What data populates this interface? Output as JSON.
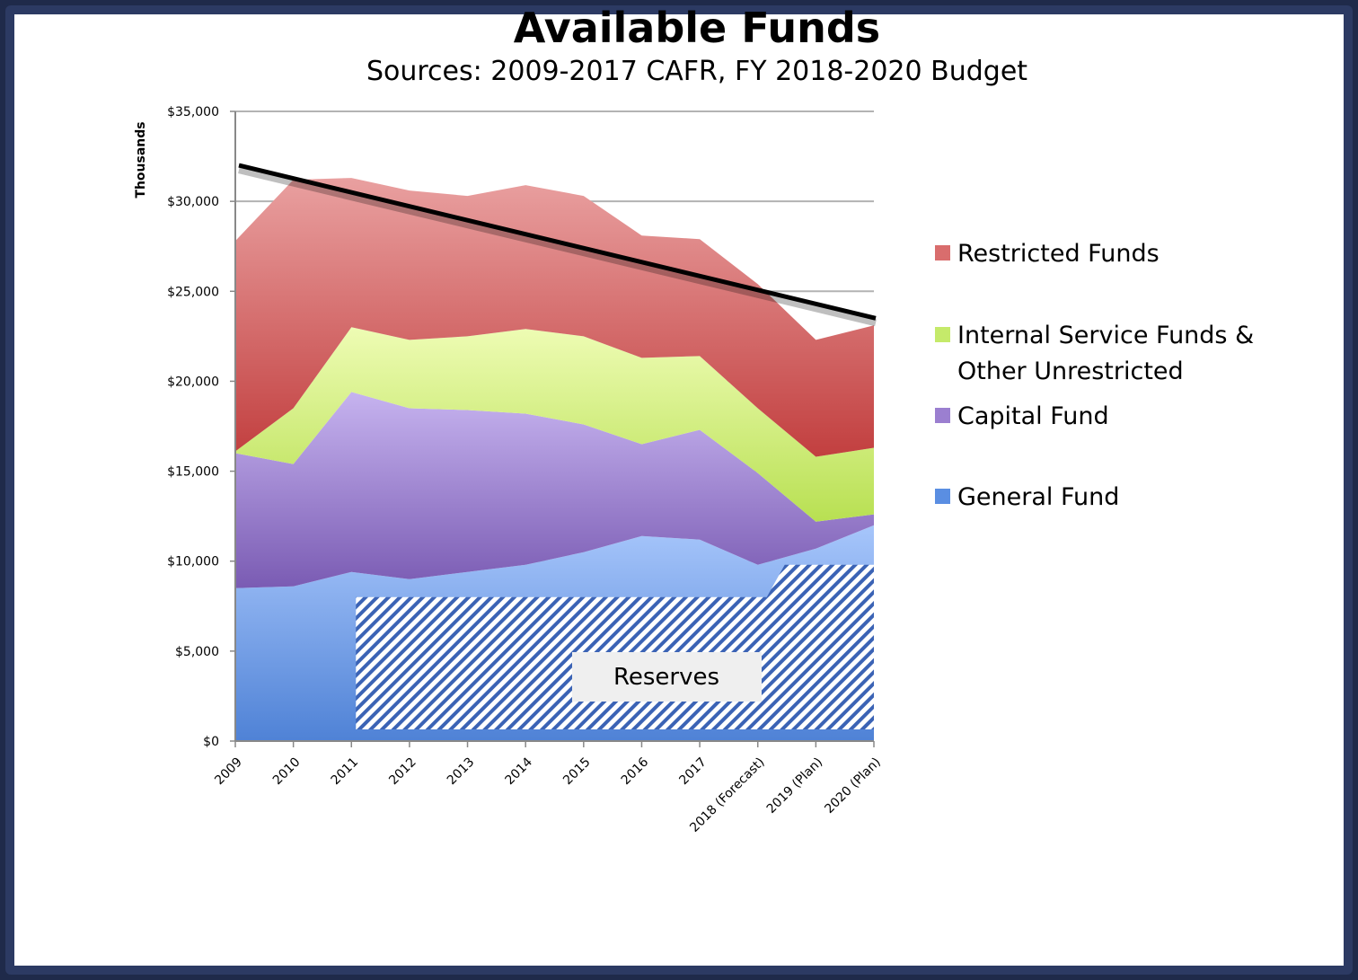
{
  "chart_data": {
    "type": "area",
    "title": "Available Funds",
    "subtitle": "Sources:  2009-2017 CAFR,  FY 2018-2020 Budget",
    "ylabel": "Thousands",
    "xlabel": "",
    "ylim": [
      0,
      35000
    ],
    "y_ticks": [
      "$0",
      "$5,000",
      "$10,000",
      "$15,000",
      "$20,000",
      "$25,000",
      "$30,000",
      "$35,000"
    ],
    "categories": [
      "2009",
      "2010",
      "2011",
      "2012",
      "2013",
      "2014",
      "2015",
      "2016",
      "2017",
      "2018 (Forecast)",
      "2019 (Plan)",
      "2020 (Plan)"
    ],
    "stacked": true,
    "grid": true,
    "legend_position": "right",
    "series": [
      {
        "name": "General Fund",
        "color": "#6f9ee8",
        "values": [
          8500,
          8600,
          9400,
          9000,
          9400,
          9800,
          10500,
          11400,
          11200,
          9800,
          10700,
          12000
        ]
      },
      {
        "name": "Capital Fund",
        "color": "#9b7fd0",
        "values": [
          7500,
          6800,
          10000,
          9500,
          9000,
          8400,
          7100,
          5100,
          6100,
          5100,
          1500,
          600
        ]
      },
      {
        "name": "Internal Service Funds & Other Unrestricted",
        "color": "#d2ef7e",
        "values": [
          100,
          3100,
          3600,
          3800,
          4100,
          4700,
          4900,
          4800,
          4100,
          3600,
          3600,
          3700
        ]
      },
      {
        "name": "Restricted Funds",
        "color": "#d96d6d",
        "values": [
          11700,
          12700,
          8300,
          8300,
          7800,
          8000,
          7800,
          6800,
          6500,
          6900,
          6500,
          6800
        ]
      }
    ],
    "trend_line": {
      "start": 32000,
      "end": 23500
    },
    "reserves": {
      "label": "Reserves",
      "segments": [
        {
          "from": "2011",
          "to": "2018 (Forecast)",
          "value": 8000
        },
        {
          "from": "2019 (Plan)",
          "to": "2020 (Plan)",
          "value": 9800
        }
      ]
    }
  }
}
